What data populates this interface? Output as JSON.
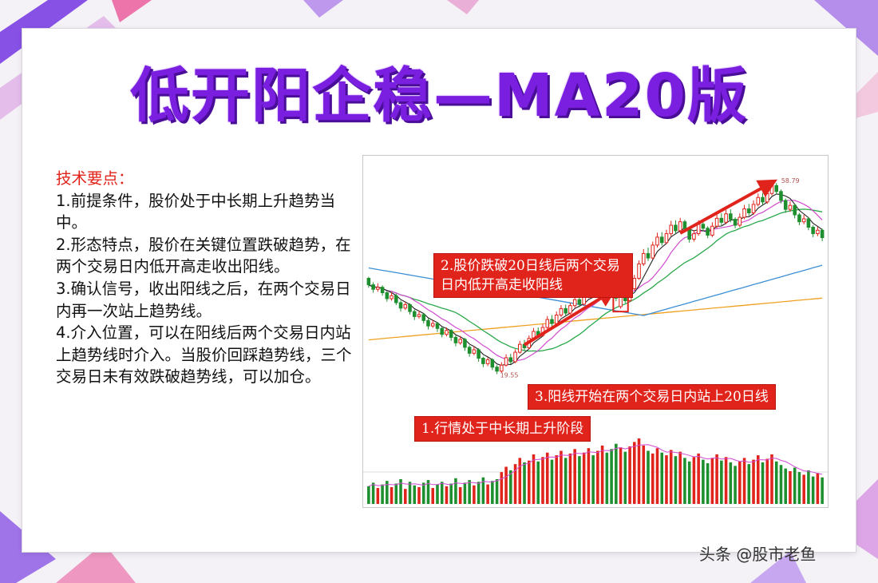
{
  "title": "低开阳企稳—MA20版",
  "points": {
    "heading": "技术要点：",
    "items": [
      "1.前提条件，股价处于中长期上升趋势当中。",
      "2.形态特点，股价在关键位置跌破趋势，在两个交易日内低开高走收出阳线。",
      "3.确认信号，收出阳线之后，在两个交易日内再一次站上趋势线。",
      "4.介入位置，可以在阳线后两个交易日内站上趋势线时介入。当股价回踩趋势线，三个交易日未有效跌破趋势线，可以加仓。"
    ]
  },
  "chart": {
    "callouts": [
      "2.股价跌破20日线后两个交易日内低开高走收阳线",
      "3.阳线开始在两个交易日内站上20日线",
      "1.行情处于中长期上升阶段"
    ],
    "high_label": "58.79",
    "low_label": "19.55",
    "colors": {
      "up": "#e0231b",
      "down": "#1e8f2e",
      "ma5": "#222222",
      "ma10": "#d24ad0",
      "ma20": "#29a84a",
      "ma60": "#3b8fd6",
      "ma120": "#f0a020",
      "arrow": "#e0231b"
    }
  },
  "chart_data": {
    "type": "candlestick",
    "x_count": 100,
    "ylim": [
      15,
      62
    ],
    "candles": [
      [
        38.9,
        37.6,
        39.2,
        37.0
      ],
      [
        37.6,
        36.7,
        38.1,
        36.0
      ],
      [
        36.7,
        37.1,
        37.9,
        36.2
      ],
      [
        37.1,
        36.0,
        37.5,
        35.4
      ],
      [
        36.0,
        34.8,
        36.3,
        34.2
      ],
      [
        34.8,
        35.4,
        36.1,
        34.4
      ],
      [
        35.4,
        34.0,
        35.8,
        33.5
      ],
      [
        34.0,
        32.9,
        34.4,
        32.2
      ],
      [
        32.9,
        33.6,
        34.2,
        32.5
      ],
      [
        33.6,
        32.2,
        33.9,
        31.6
      ],
      [
        32.2,
        31.2,
        32.6,
        30.5
      ],
      [
        31.2,
        31.6,
        32.4,
        30.8
      ],
      [
        31.6,
        30.4,
        31.9,
        29.8
      ],
      [
        30.4,
        29.3,
        30.8,
        28.6
      ],
      [
        29.3,
        29.8,
        30.5,
        28.9
      ],
      [
        29.8,
        28.8,
        30.1,
        28.1
      ],
      [
        28.8,
        27.6,
        29.1,
        27.0
      ],
      [
        27.6,
        28.4,
        29.0,
        27.2
      ],
      [
        28.4,
        27.0,
        28.7,
        26.3
      ],
      [
        27.0,
        25.9,
        27.4,
        25.2
      ],
      [
        25.9,
        26.6,
        27.3,
        25.5
      ],
      [
        26.6,
        25.0,
        26.9,
        24.3
      ],
      [
        25.0,
        23.8,
        25.4,
        23.1
      ],
      [
        23.8,
        24.5,
        25.2,
        23.4
      ],
      [
        24.5,
        22.8,
        24.8,
        22.1
      ],
      [
        22.8,
        21.7,
        23.1,
        21.0
      ],
      [
        21.7,
        22.5,
        23.0,
        21.2
      ],
      [
        22.5,
        21.0,
        22.8,
        20.4
      ],
      [
        21.0,
        20.2,
        21.4,
        19.6
      ],
      [
        20.2,
        21.4,
        22.0,
        19.9
      ],
      [
        21.4,
        22.9,
        23.6,
        21.1
      ],
      [
        22.9,
        22.1,
        23.7,
        21.6
      ],
      [
        22.1,
        24.0,
        24.6,
        21.8
      ],
      [
        24.0,
        25.6,
        26.3,
        23.7
      ],
      [
        25.6,
        24.9,
        26.5,
        24.3
      ],
      [
        24.9,
        26.8,
        27.4,
        24.6
      ],
      [
        26.8,
        28.2,
        28.9,
        26.4
      ],
      [
        28.2,
        27.4,
        29.0,
        26.9
      ],
      [
        27.4,
        29.0,
        29.7,
        27.1
      ],
      [
        29.0,
        30.6,
        31.3,
        28.7
      ],
      [
        30.6,
        29.8,
        31.5,
        29.2
      ],
      [
        29.8,
        31.5,
        32.2,
        29.5
      ],
      [
        31.5,
        32.8,
        33.5,
        31.1
      ],
      [
        32.8,
        31.9,
        33.6,
        31.3
      ],
      [
        31.9,
        33.4,
        34.0,
        31.6
      ],
      [
        33.4,
        34.6,
        35.3,
        33.0
      ],
      [
        34.6,
        33.7,
        35.4,
        33.1
      ],
      [
        33.7,
        35.2,
        35.9,
        33.4
      ],
      [
        35.2,
        36.3,
        37.0,
        34.9
      ],
      [
        36.3,
        35.6,
        37.2,
        35.0
      ],
      [
        35.6,
        36.9,
        37.6,
        35.3
      ],
      [
        36.9,
        38.0,
        38.8,
        36.6
      ],
      [
        38.0,
        37.2,
        38.9,
        36.7
      ],
      [
        37.2,
        36.1,
        37.6,
        35.5
      ],
      [
        36.1,
        34.9,
        36.4,
        34.3
      ],
      [
        33.2,
        35.1,
        35.6,
        32.8
      ],
      [
        35.1,
        34.4,
        35.7,
        33.9
      ],
      [
        34.4,
        36.8,
        37.4,
        34.1
      ],
      [
        36.8,
        38.9,
        39.6,
        36.5
      ],
      [
        38.9,
        41.8,
        42.5,
        38.6
      ],
      [
        41.8,
        43.9,
        44.8,
        41.4
      ],
      [
        43.9,
        43.0,
        45.1,
        42.4
      ],
      [
        43.0,
        45.6,
        46.3,
        42.7
      ],
      [
        45.6,
        47.2,
        48.1,
        45.1
      ],
      [
        47.2,
        46.1,
        48.2,
        45.5
      ],
      [
        46.1,
        47.9,
        48.7,
        45.8
      ],
      [
        47.9,
        49.6,
        50.5,
        47.4
      ],
      [
        49.6,
        48.5,
        50.6,
        47.9
      ],
      [
        48.5,
        50.3,
        51.1,
        48.1
      ],
      [
        50.3,
        48.9,
        50.7,
        48.2
      ],
      [
        48.9,
        46.8,
        49.3,
        46.1
      ],
      [
        46.8,
        47.9,
        48.6,
        46.3
      ],
      [
        47.9,
        49.8,
        50.6,
        47.5
      ],
      [
        49.8,
        49.0,
        50.8,
        48.4
      ],
      [
        49.0,
        47.6,
        49.4,
        47.0
      ],
      [
        47.6,
        49.4,
        50.2,
        47.2
      ],
      [
        49.4,
        51.0,
        51.8,
        49.0
      ],
      [
        51.0,
        50.2,
        52.0,
        49.6
      ],
      [
        50.2,
        51.9,
        52.7,
        49.8
      ],
      [
        51.9,
        50.8,
        52.8,
        50.2
      ],
      [
        50.8,
        49.6,
        51.2,
        49.0
      ],
      [
        49.6,
        51.2,
        52.0,
        49.2
      ],
      [
        51.2,
        52.9,
        53.7,
        50.8
      ],
      [
        52.9,
        52.1,
        53.9,
        51.5
      ],
      [
        52.1,
        53.8,
        54.6,
        51.7
      ],
      [
        53.8,
        55.2,
        56.0,
        53.4
      ],
      [
        55.2,
        54.3,
        56.1,
        53.7
      ],
      [
        54.3,
        56.0,
        56.8,
        53.9
      ],
      [
        56.0,
        57.6,
        58.79,
        55.6
      ],
      [
        57.6,
        56.4,
        58.1,
        55.8
      ],
      [
        56.4,
        54.6,
        56.8,
        54.0
      ],
      [
        54.6,
        52.8,
        55.0,
        52.1
      ],
      [
        52.8,
        53.6,
        54.4,
        52.3
      ],
      [
        53.6,
        51.7,
        53.9,
        51.0
      ],
      [
        51.7,
        50.3,
        52.1,
        49.6
      ],
      [
        50.3,
        50.9,
        51.7,
        49.8
      ],
      [
        50.9,
        49.2,
        51.2,
        48.6
      ],
      [
        49.2,
        47.9,
        49.6,
        47.2
      ],
      [
        47.9,
        48.6,
        49.3,
        47.4
      ],
      [
        48.6,
        47.1,
        48.9,
        46.4
      ]
    ],
    "volume": [
      20,
      24,
      18,
      22,
      26,
      19,
      23,
      28,
      17,
      25,
      21,
      19,
      24,
      27,
      18,
      22,
      25,
      20,
      23,
      29,
      19,
      24,
      27,
      21,
      25,
      30,
      22,
      26,
      28,
      36,
      42,
      38,
      45,
      52,
      47,
      49,
      56,
      48,
      53,
      58,
      50,
      55,
      60,
      52,
      57,
      62,
      54,
      58,
      63,
      55,
      60,
      66,
      58,
      62,
      68,
      64,
      59,
      65,
      70,
      74,
      66,
      60,
      57,
      63,
      58,
      55,
      61,
      54,
      59,
      52,
      48,
      53,
      57,
      50,
      46,
      52,
      56,
      49,
      53,
      47,
      43,
      48,
      52,
      45,
      50,
      55,
      47,
      51,
      56,
      48,
      44,
      40,
      37,
      41,
      36,
      33,
      38,
      31,
      35,
      30
    ]
  }
}
